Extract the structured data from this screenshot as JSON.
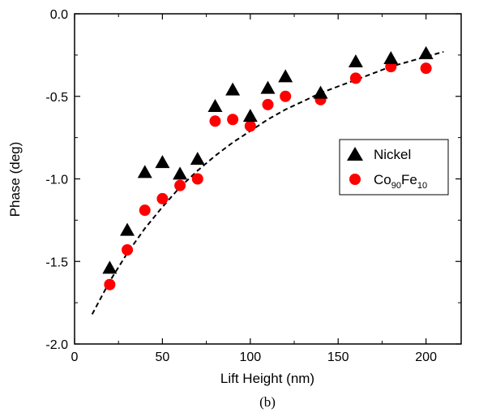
{
  "chart_data": {
    "type": "scatter",
    "xlabel": "Lift Height (nm)",
    "ylabel": "Phase (deg)",
    "xlim": [
      0,
      220
    ],
    "ylim": [
      -2.0,
      0.0
    ],
    "xticks": [
      0,
      50,
      100,
      150,
      200
    ],
    "yticks": [
      0.0,
      -0.5,
      -1.0,
      -1.5,
      -2.0
    ],
    "xtick_labels": [
      "0",
      "50",
      "100",
      "150",
      "200"
    ],
    "ytick_labels": [
      "0.0",
      "-0.5",
      "-1.0",
      "-1.5",
      "-2.0"
    ],
    "grid": false,
    "legend_position": "right",
    "caption": "(b)",
    "series": [
      {
        "name": "Nickel",
        "marker": "triangle",
        "color": "#000000",
        "x": [
          20,
          30,
          40,
          50,
          60,
          70,
          80,
          90,
          100,
          110,
          120,
          140,
          160,
          180,
          200
        ],
        "y": [
          -1.54,
          -1.31,
          -0.96,
          -0.9,
          -0.97,
          -0.88,
          -0.56,
          -0.46,
          -0.62,
          -0.45,
          -0.38,
          -0.48,
          -0.29,
          -0.27,
          -0.24
        ]
      },
      {
        "name": "Co90Fe10",
        "name_parts": {
          "base1": "Co",
          "sub1": "90",
          "base2": "Fe",
          "sub2": "10"
        },
        "marker": "circle",
        "color": "#ff0000",
        "x": [
          20,
          30,
          40,
          50,
          60,
          70,
          80,
          90,
          100,
          110,
          120,
          140,
          160,
          180,
          200
        ],
        "y": [
          -1.64,
          -1.43,
          -1.19,
          -1.12,
          -1.04,
          -1.0,
          -0.65,
          -0.64,
          -0.68,
          -0.55,
          -0.5,
          -0.52,
          -0.39,
          -0.32,
          -0.33
        ]
      }
    ],
    "fit_curve": {
      "style": "dashed",
      "color": "#000000",
      "x": [
        10,
        20,
        30,
        40,
        50,
        60,
        70,
        80,
        90,
        100,
        110,
        120,
        130,
        140,
        150,
        160,
        170,
        180,
        190,
        200,
        210
      ],
      "y": [
        -1.82,
        -1.62,
        -1.45,
        -1.3,
        -1.17,
        -1.05,
        -0.95,
        -0.86,
        -0.78,
        -0.71,
        -0.64,
        -0.58,
        -0.53,
        -0.48,
        -0.44,
        -0.4,
        -0.36,
        -0.32,
        -0.29,
        -0.26,
        -0.23
      ]
    }
  }
}
